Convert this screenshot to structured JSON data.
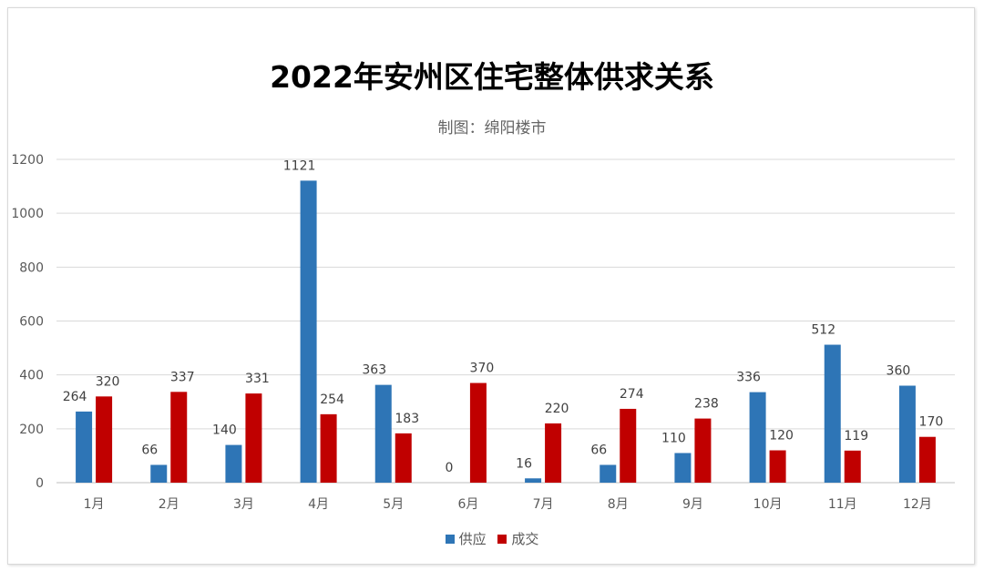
{
  "chart_data": {
    "type": "bar",
    "title": "2022年安州区住宅整体供求关系",
    "subtitle": "制图：绵阳楼市",
    "categories": [
      "1月",
      "2月",
      "3月",
      "4月",
      "5月",
      "6月",
      "7月",
      "8月",
      "9月",
      "10月",
      "11月",
      "12月"
    ],
    "series": [
      {
        "name": "供应",
        "color": "#2E75B6",
        "values": [
          264,
          66,
          140,
          1121,
          363,
          0,
          16,
          66,
          110,
          336,
          512,
          360
        ]
      },
      {
        "name": "成交",
        "color": "#C00000",
        "values": [
          320,
          337,
          331,
          254,
          183,
          370,
          220,
          274,
          238,
          120,
          119,
          170
        ]
      }
    ],
    "ylim": [
      0,
      1200
    ],
    "yticks": [
      0,
      200,
      400,
      600,
      800,
      1000,
      1200
    ],
    "grid": true,
    "legend_position": "bottom"
  }
}
